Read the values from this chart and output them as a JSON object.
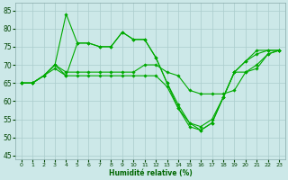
{
  "title": "",
  "xlabel": "Humidité relative (%)",
  "ylabel": "",
  "xlim": [
    -0.5,
    23.5
  ],
  "ylim": [
    44,
    87
  ],
  "yticks": [
    45,
    50,
    55,
    60,
    65,
    70,
    75,
    80,
    85
  ],
  "xticks": [
    0,
    1,
    2,
    3,
    4,
    5,
    6,
    7,
    8,
    9,
    10,
    11,
    12,
    13,
    14,
    15,
    16,
    17,
    18,
    19,
    20,
    21,
    22,
    23
  ],
  "background_color": "#cce8e8",
  "grid_color": "#aacccc",
  "line_color": "#00aa00",
  "lines": [
    {
      "x": [
        0,
        1,
        2,
        3,
        4,
        5,
        6,
        7,
        8,
        9,
        10,
        11,
        12,
        13,
        14,
        15,
        16,
        17,
        18,
        19,
        20,
        21,
        22,
        23
      ],
      "y": [
        65,
        65,
        67,
        70,
        84,
        76,
        76,
        75,
        75,
        79,
        77,
        77,
        72,
        65,
        59,
        54,
        52,
        54,
        61,
        68,
        71,
        74,
        74,
        74
      ]
    },
    {
      "x": [
        0,
        1,
        2,
        3,
        4,
        5,
        6,
        7,
        8,
        9,
        10,
        11,
        12,
        13,
        14,
        15,
        16,
        17,
        18,
        19,
        20,
        21,
        22,
        23
      ],
      "y": [
        65,
        65,
        67,
        69,
        67,
        76,
        76,
        75,
        75,
        79,
        77,
        77,
        72,
        65,
        58,
        54,
        53,
        55,
        61,
        68,
        71,
        73,
        74,
        74
      ]
    },
    {
      "x": [
        0,
        1,
        2,
        3,
        4,
        5,
        6,
        7,
        8,
        9,
        10,
        11,
        12,
        13,
        14,
        15,
        16,
        17,
        18,
        19,
        20,
        21,
        22,
        23
      ],
      "y": [
        65,
        65,
        67,
        70,
        68,
        68,
        68,
        68,
        68,
        68,
        68,
        70,
        70,
        68,
        67,
        63,
        62,
        62,
        62,
        63,
        68,
        70,
        73,
        74
      ]
    },
    {
      "x": [
        0,
        1,
        2,
        3,
        4,
        5,
        6,
        7,
        8,
        9,
        10,
        11,
        12,
        13,
        14,
        15,
        16,
        17,
        18,
        19,
        20,
        21,
        22,
        23
      ],
      "y": [
        65,
        65,
        67,
        70,
        67,
        67,
        67,
        67,
        67,
        67,
        67,
        67,
        67,
        64,
        58,
        53,
        52,
        54,
        61,
        68,
        68,
        69,
        73,
        74
      ]
    }
  ]
}
